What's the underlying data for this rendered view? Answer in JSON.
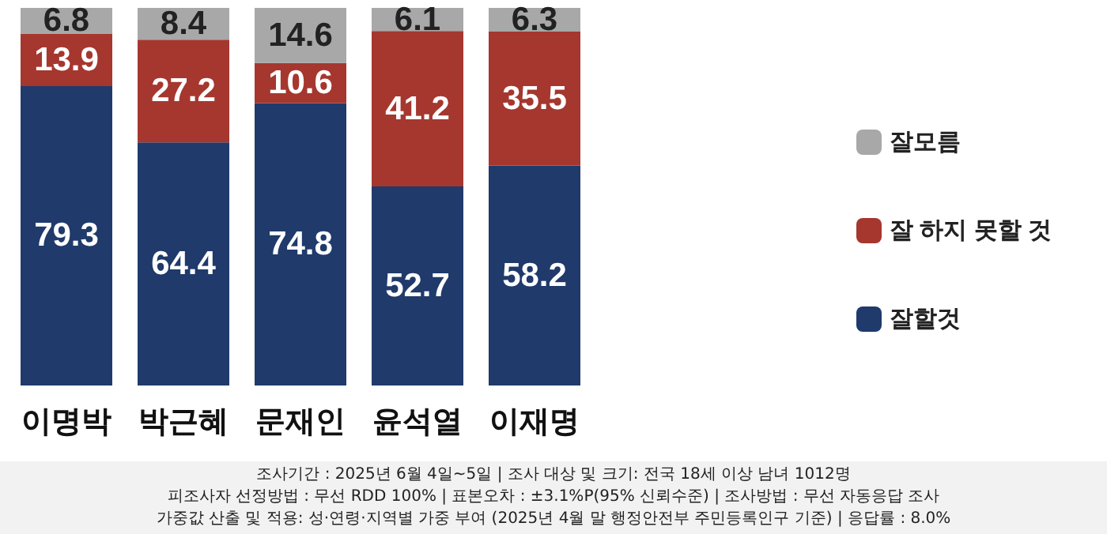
{
  "chart_data": {
    "type": "bar",
    "stacked": true,
    "data_labels": true,
    "legend": "right",
    "tick_labels": "x",
    "grid": false,
    "ylim": [
      0,
      100
    ],
    "categories": [
      "이명박",
      "박근혜",
      "문재인",
      "윤석열",
      "이재명"
    ],
    "series": [
      {
        "name": "잘할것",
        "color": "#1f3a6b",
        "values": [
          79.3,
          64.4,
          74.8,
          52.7,
          58.2
        ]
      },
      {
        "name": "잘 하지 못할 것",
        "color": "#a5372f",
        "values": [
          13.9,
          27.2,
          10.6,
          41.2,
          35.5
        ]
      },
      {
        "name": "잘모름",
        "color": "#a8a8a8",
        "values": [
          6.8,
          8.4,
          14.6,
          6.1,
          6.3
        ]
      }
    ],
    "annotations": [
      "조사기간 : 2025년 6월 4일~5일 | 조사 대상 및 크기: 전국 18세 이상 남녀 1012명",
      "피조사자 선정방법 : 무선 RDD 100% | 표본오차 : ±3.1%P(95% 신뢰수준) | 조사방법 : 무선 자동응답 조사",
      "가중값 산출 및 적용: 성·연령·지역별 가중 부여 (2025년 4월 말 행정안전부 주민등록인구 기준) | 응답률 : 8.0%"
    ]
  }
}
